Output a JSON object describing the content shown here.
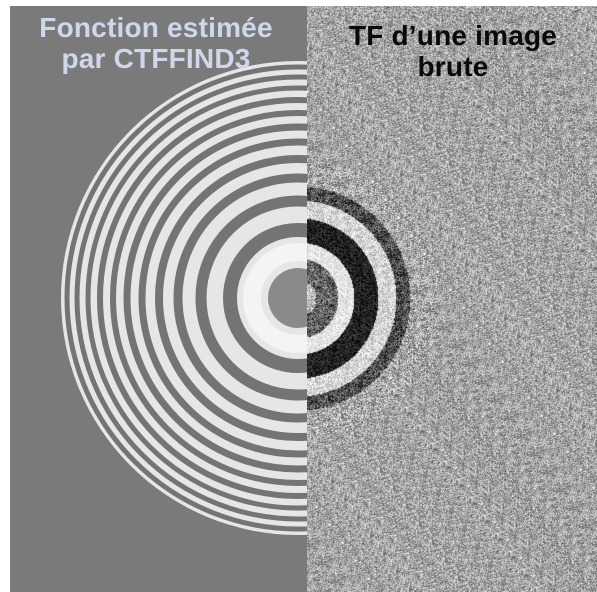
{
  "figure": {
    "left_panel": {
      "title_line1": "Fonction estimée",
      "title_line2": "par CTFFIND3",
      "title_color": "#cfd8ea",
      "background_color": "#7a7a7a",
      "content": "ctf-ring-pattern"
    },
    "right_panel": {
      "title_line1": "TF d’une image",
      "title_line2": "brute",
      "title_color": "#0a0a0a",
      "content": "noisy-power-spectrum"
    }
  }
}
